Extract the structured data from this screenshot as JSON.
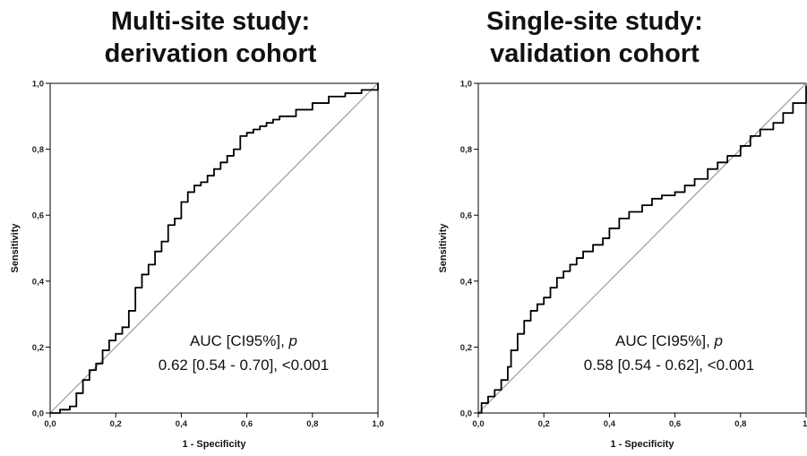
{
  "chart_data": [
    {
      "type": "line",
      "title_line1": "Multi-site study:",
      "title_line2": "derivation cohort",
      "xlabel": "1 - Specificity",
      "ylabel": "Sensitivity",
      "xlim": [
        0,
        1
      ],
      "ylim": [
        0,
        1
      ],
      "x_ticks": [
        "0,0",
        "0,2",
        "0,4",
        "0,6",
        "0,8",
        "1,0"
      ],
      "y_ticks": [
        "0,0",
        "0,2",
        "0,4",
        "0,6",
        "0,8",
        "1,0"
      ],
      "annotation_line1_prefix": "AUC [CI95%], ",
      "annotation_line1_p": "p",
      "annotation_line2": "0.62 [0.54 - 0.70], <0.001",
      "reference_line": [
        [
          0,
          0
        ],
        [
          1,
          1
        ]
      ],
      "x": [
        0,
        0.03,
        0.06,
        0.08,
        0.1,
        0.12,
        0.14,
        0.16,
        0.18,
        0.2,
        0.22,
        0.24,
        0.26,
        0.28,
        0.3,
        0.32,
        0.34,
        0.36,
        0.38,
        0.4,
        0.42,
        0.44,
        0.46,
        0.48,
        0.5,
        0.52,
        0.54,
        0.56,
        0.58,
        0.6,
        0.62,
        0.64,
        0.66,
        0.68,
        0.7,
        0.75,
        0.8,
        0.85,
        0.9,
        0.95,
        1.0
      ],
      "y": [
        0,
        0.01,
        0.02,
        0.06,
        0.1,
        0.13,
        0.15,
        0.19,
        0.22,
        0.24,
        0.26,
        0.31,
        0.38,
        0.42,
        0.45,
        0.49,
        0.52,
        0.57,
        0.59,
        0.64,
        0.67,
        0.69,
        0.7,
        0.72,
        0.74,
        0.76,
        0.78,
        0.8,
        0.84,
        0.85,
        0.86,
        0.87,
        0.88,
        0.89,
        0.9,
        0.92,
        0.94,
        0.96,
        0.97,
        0.98,
        1.0
      ]
    },
    {
      "type": "line",
      "title_line1": "Single-site study:",
      "title_line2": "validation cohort",
      "xlabel": "1 - Specificity",
      "ylabel": "Sensitivity",
      "xlim": [
        0,
        1
      ],
      "ylim": [
        0,
        1
      ],
      "x_ticks": [
        "0,0",
        "0,2",
        "0,4",
        "0,6",
        "0,8",
        "1,"
      ],
      "y_ticks": [
        "0,0",
        "0,2",
        "0,4",
        "0,6",
        "0,8",
        "1,0"
      ],
      "annotation_line1_prefix": "AUC [CI95%], ",
      "annotation_line1_p": "p",
      "annotation_line2": "0.58 [0.54 - 0.62], <0.001",
      "reference_line": [
        [
          0,
          0
        ],
        [
          1,
          1
        ]
      ],
      "x": [
        0,
        0.01,
        0.03,
        0.05,
        0.07,
        0.09,
        0.1,
        0.12,
        0.14,
        0.16,
        0.18,
        0.2,
        0.22,
        0.24,
        0.26,
        0.28,
        0.3,
        0.32,
        0.35,
        0.38,
        0.4,
        0.43,
        0.46,
        0.5,
        0.53,
        0.56,
        0.6,
        0.63,
        0.66,
        0.7,
        0.73,
        0.76,
        0.8,
        0.83,
        0.86,
        0.9,
        0.93,
        0.96,
        1.0
      ],
      "y": [
        0,
        0.03,
        0.05,
        0.07,
        0.1,
        0.14,
        0.19,
        0.24,
        0.28,
        0.31,
        0.33,
        0.35,
        0.38,
        0.41,
        0.43,
        0.45,
        0.47,
        0.49,
        0.51,
        0.53,
        0.56,
        0.59,
        0.61,
        0.63,
        0.65,
        0.66,
        0.67,
        0.69,
        0.71,
        0.74,
        0.76,
        0.78,
        0.81,
        0.84,
        0.86,
        0.88,
        0.91,
        0.94,
        0.99
      ]
    }
  ]
}
